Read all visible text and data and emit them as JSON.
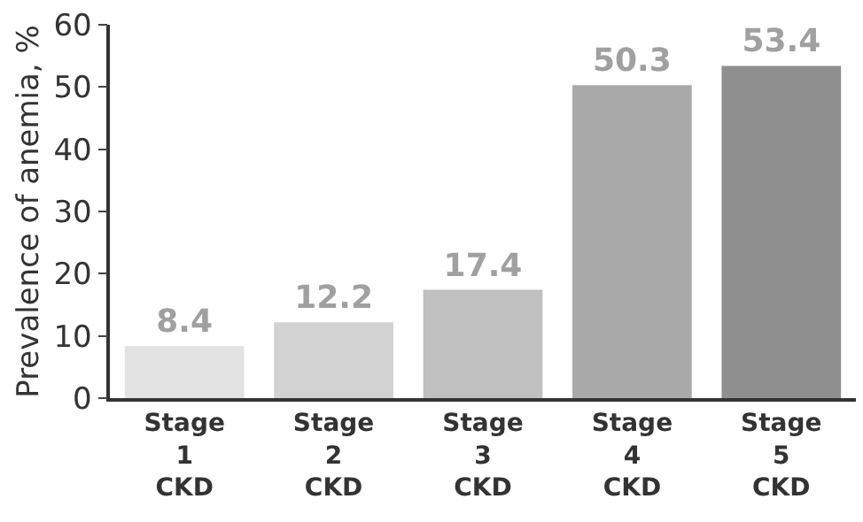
{
  "chart_data": {
    "type": "bar",
    "ylabel": "Prevalence of anemia, %",
    "categories": [
      "Stage\n1\nCKD",
      "Stage\n2\nCKD",
      "Stage\n3\nCKD",
      "Stage\n4\nCKD",
      "Stage\n5\nCKD"
    ],
    "values": [
      8.4,
      12.2,
      17.4,
      50.3,
      53.4
    ],
    "colors": [
      "#e3e3e3",
      "#d2d2d2",
      "#c0c0c0",
      "#a9a9a9",
      "#8f8f8f"
    ],
    "ylim": [
      0,
      60
    ],
    "yticks": [
      0,
      10,
      20,
      30,
      40,
      50,
      60
    ],
    "data_labels": true,
    "legend": false
  }
}
